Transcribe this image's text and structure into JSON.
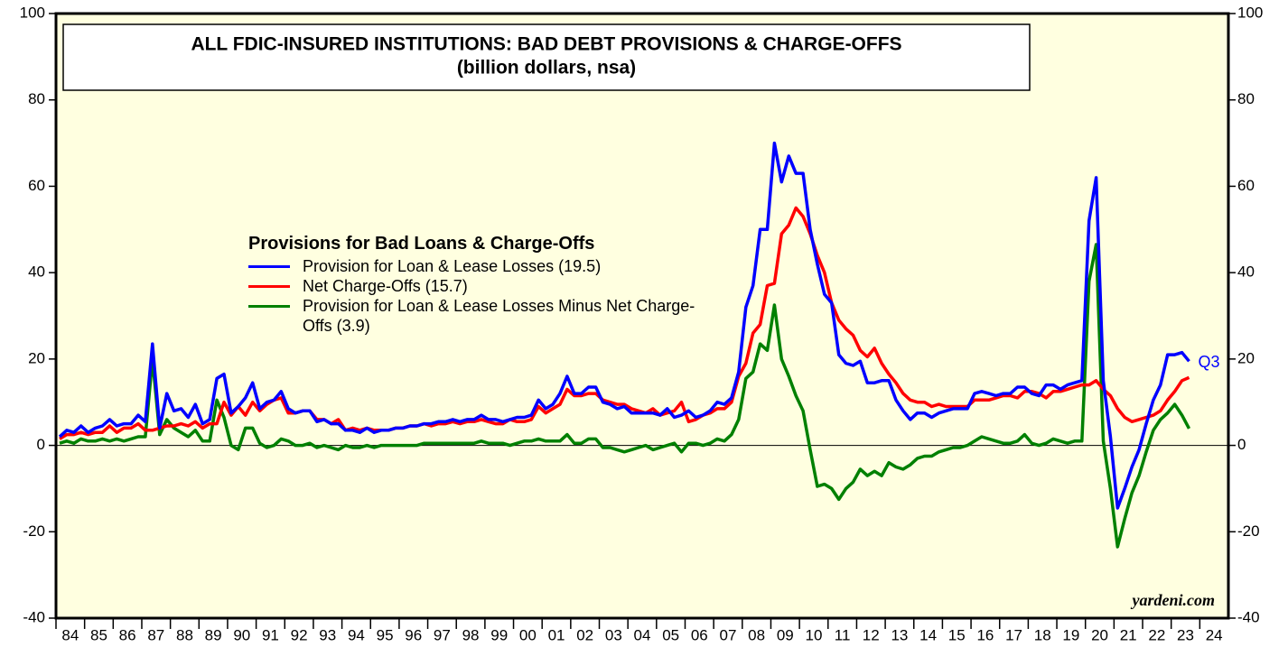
{
  "chart_data": {
    "type": "line",
    "title": "ALL FDIC-INSURED INSTITUTIONS: BAD DEBT PROVISIONS & CHARGE-OFFS",
    "subtitle": "(billion dollars, nsa)",
    "legend_title": "Provisions for Bad Loans & Charge-Offs",
    "annotations": [
      "Q3",
      "yardeni.com"
    ],
    "x": [
      1984.125,
      1984.375,
      1984.625,
      1984.875,
      1985.125,
      1985.375,
      1985.625,
      1985.875,
      1986.125,
      1986.375,
      1986.625,
      1986.875,
      1987.125,
      1987.375,
      1987.625,
      1987.875,
      1988.125,
      1988.375,
      1988.625,
      1988.875,
      1989.125,
      1989.375,
      1989.625,
      1989.875,
      1990.125,
      1990.375,
      1990.625,
      1990.875,
      1991.125,
      1991.375,
      1991.625,
      1991.875,
      1992.125,
      1992.375,
      1992.625,
      1992.875,
      1993.125,
      1993.375,
      1993.625,
      1993.875,
      1994.125,
      1994.375,
      1994.625,
      1994.875,
      1995.125,
      1995.375,
      1995.625,
      1995.875,
      1996.125,
      1996.375,
      1996.625,
      1996.875,
      1997.125,
      1997.375,
      1997.625,
      1997.875,
      1998.125,
      1998.375,
      1998.625,
      1998.875,
      1999.125,
      1999.375,
      1999.625,
      1999.875,
      2000.125,
      2000.375,
      2000.625,
      2000.875,
      2001.125,
      2001.375,
      2001.625,
      2001.875,
      2002.125,
      2002.375,
      2002.625,
      2002.875,
      2003.125,
      2003.375,
      2003.625,
      2003.875,
      2004.125,
      2004.375,
      2004.625,
      2004.875,
      2005.125,
      2005.375,
      2005.625,
      2005.875,
      2006.125,
      2006.375,
      2006.625,
      2006.875,
      2007.125,
      2007.375,
      2007.625,
      2007.875,
      2008.125,
      2008.375,
      2008.625,
      2008.875,
      2009.125,
      2009.375,
      2009.625,
      2009.875,
      2010.125,
      2010.375,
      2010.625,
      2010.875,
      2011.125,
      2011.375,
      2011.625,
      2011.875,
      2012.125,
      2012.375,
      2012.625,
      2012.875,
      2013.125,
      2013.375,
      2013.625,
      2013.875,
      2014.125,
      2014.375,
      2014.625,
      2014.875,
      2015.125,
      2015.375,
      2015.625,
      2015.875,
      2016.125,
      2016.375,
      2016.625,
      2016.875,
      2017.125,
      2017.375,
      2017.625,
      2017.875,
      2018.125,
      2018.375,
      2018.625,
      2018.875,
      2019.125,
      2019.375,
      2019.625,
      2019.875,
      2020.125,
      2020.375,
      2020.625,
      2020.875,
      2021.125,
      2021.375,
      2021.625,
      2021.875,
      2022.125,
      2022.375,
      2022.625,
      2022.875,
      2023.125,
      2023.375,
      2023.625
    ],
    "series": [
      {
        "name": "Provision for Loan & Lease Losses (19.5)",
        "color": "#0000ff",
        "values": [
          2,
          3.5,
          3,
          4.5,
          3,
          4,
          4.5,
          6,
          4.5,
          5,
          5,
          7,
          5.5,
          23.5,
          4,
          12,
          8,
          8.5,
          6.5,
          9.5,
          5,
          6,
          15.5,
          16.5,
          7.5,
          9,
          11,
          14.5,
          8.5,
          10,
          10.5,
          12.5,
          8.5,
          7.5,
          8,
          8,
          5.5,
          6,
          5,
          5,
          3.5,
          3.5,
          3,
          4,
          3,
          3.5,
          3.5,
          4,
          4,
          4.5,
          4.5,
          5,
          5,
          5.5,
          5.5,
          6,
          5.5,
          6,
          6,
          7,
          6,
          6,
          5.5,
          6,
          6.5,
          6.5,
          7,
          10.5,
          8.5,
          9.5,
          12,
          16,
          12,
          12,
          13.5,
          13.5,
          10,
          9.5,
          8.5,
          9,
          7.5,
          7.5,
          7.5,
          7.5,
          7,
          8.5,
          6.5,
          7,
          8,
          6.5,
          7,
          8,
          10,
          9.5,
          11,
          17,
          32,
          37,
          50,
          50,
          70,
          61,
          67,
          63,
          63,
          50,
          42,
          35,
          33,
          21,
          19,
          18.5,
          19.5,
          14.5,
          14.5,
          15,
          15,
          10.5,
          8,
          6,
          7.5,
          7.5,
          6.5,
          7.5,
          8,
          8.5,
          8.5,
          8.5,
          12,
          12.5,
          12,
          11.5,
          12,
          12,
          13.5,
          13.5,
          12,
          11.5,
          14,
          14,
          13,
          14,
          14.5,
          15,
          52,
          62,
          15,
          2,
          -14.5,
          -10,
          -5,
          -1,
          5,
          10.5,
          14,
          21,
          21,
          21.5,
          19.5
        ]
      },
      {
        "name": "Net Charge-Offs (15.7)",
        "color": "#ff0000",
        "values": [
          1.5,
          2.5,
          2.5,
          3,
          2.5,
          3,
          3,
          4.5,
          3,
          4,
          4,
          5,
          3.5,
          3.5,
          4,
          4.5,
          4.5,
          5,
          4.5,
          5.5,
          4,
          5,
          5,
          10,
          7,
          9,
          7,
          10,
          8,
          9.5,
          10.5,
          11,
          7.5,
          7.5,
          8,
          8,
          6,
          6,
          5,
          6,
          3.5,
          4,
          3.5,
          4,
          3.5,
          3.5,
          3.5,
          4,
          4,
          4.5,
          4.5,
          5,
          4.5,
          5,
          5,
          5.5,
          5,
          5.5,
          5.5,
          6,
          5.5,
          5,
          5,
          6,
          5.5,
          5.5,
          6,
          9,
          7.5,
          8.5,
          9.5,
          13,
          11.5,
          11.5,
          12,
          12,
          10.5,
          10,
          9.5,
          9.5,
          8.5,
          8,
          7.5,
          8.5,
          7,
          7.5,
          8,
          10,
          5.5,
          6,
          7,
          7.5,
          8.5,
          8.5,
          10,
          16,
          19,
          26,
          28,
          37,
          37.5,
          49,
          51,
          55,
          53,
          49,
          44,
          40,
          33,
          29,
          27,
          25.5,
          22,
          20.5,
          22.5,
          19,
          16.5,
          14.5,
          12,
          10.5,
          10,
          10,
          9,
          9.5,
          9,
          9,
          9,
          9,
          10.5,
          10.5,
          10.5,
          11,
          11.5,
          11.5,
          11,
          12.5,
          12.5,
          12,
          11,
          12.5,
          12.5,
          13,
          13.5,
          14,
          14,
          15,
          13,
          11.5,
          8.5,
          6.5,
          5.5,
          6,
          6.5,
          7,
          8,
          10.5,
          12.5,
          15,
          15.7
        ]
      },
      {
        "name": "Provision for Loan & Lease Losses Minus Net Charge-Offs (3.9)",
        "color": "#008000",
        "values": [
          0.5,
          1,
          0.5,
          1.5,
          1,
          1,
          1.5,
          1,
          1.5,
          1,
          1.5,
          2,
          2,
          20,
          2.5,
          6,
          4,
          3,
          2,
          3.5,
          1,
          1,
          10.5,
          6.5,
          0,
          -1,
          4,
          4,
          0.5,
          -0.5,
          0,
          1.5,
          1,
          0,
          0,
          0.5,
          -0.5,
          0,
          -0.5,
          -1,
          0,
          -0.5,
          -0.5,
          0,
          -0.5,
          0,
          0,
          0,
          0,
          0,
          0,
          0.5,
          0.5,
          0.5,
          0.5,
          0.5,
          0.5,
          0.5,
          0.5,
          1,
          0.5,
          0.5,
          0.5,
          0,
          0.5,
          1,
          1,
          1.5,
          1,
          1,
          1,
          2.5,
          0.5,
          0.5,
          1.5,
          1.5,
          -0.5,
          -0.5,
          -1,
          -1.5,
          -1,
          -0.5,
          0,
          -1,
          -0.5,
          0,
          0.5,
          -1.5,
          0.5,
          0.5,
          0,
          0.5,
          1.5,
          1,
          2.5,
          6,
          15.5,
          17,
          23.5,
          22,
          32.5,
          20,
          16,
          11.5,
          8,
          -1,
          -9.5,
          -9,
          -10,
          -12.5,
          -10,
          -8.5,
          -5.5,
          -7,
          -6,
          -7,
          -4,
          -5,
          -5.5,
          -4.5,
          -3,
          -2.5,
          -2.5,
          -1.5,
          -1,
          -0.5,
          -0.5,
          0,
          1,
          2,
          1.5,
          1,
          0.5,
          0.5,
          1,
          2.5,
          0.5,
          0,
          0.5,
          1.5,
          1,
          0.5,
          1,
          1,
          38,
          46.5,
          1,
          -10,
          -23.5,
          -17,
          -11,
          -7,
          -1.5,
          3.5,
          6,
          7.5,
          9.5,
          7,
          3.9
        ]
      }
    ],
    "xlim": [
      1984,
      2025
    ],
    "xticks": [
      {
        "value": 1984,
        "label": "84"
      },
      {
        "value": 1985,
        "label": "85"
      },
      {
        "value": 1986,
        "label": "86"
      },
      {
        "value": 1987,
        "label": "87"
      },
      {
        "value": 1988,
        "label": "88"
      },
      {
        "value": 1989,
        "label": "89"
      },
      {
        "value": 1990,
        "label": "90"
      },
      {
        "value": 1991,
        "label": "91"
      },
      {
        "value": 1992,
        "label": "92"
      },
      {
        "value": 1993,
        "label": "93"
      },
      {
        "value": 1994,
        "label": "94"
      },
      {
        "value": 1995,
        "label": "95"
      },
      {
        "value": 1996,
        "label": "96"
      },
      {
        "value": 1997,
        "label": "97"
      },
      {
        "value": 1998,
        "label": "98"
      },
      {
        "value": 1999,
        "label": "99"
      },
      {
        "value": 2000,
        "label": "00"
      },
      {
        "value": 2001,
        "label": "01"
      },
      {
        "value": 2002,
        "label": "02"
      },
      {
        "value": 2003,
        "label": "03"
      },
      {
        "value": 2004,
        "label": "04"
      },
      {
        "value": 2005,
        "label": "05"
      },
      {
        "value": 2006,
        "label": "06"
      },
      {
        "value": 2007,
        "label": "07"
      },
      {
        "value": 2008,
        "label": "08"
      },
      {
        "value": 2009,
        "label": "09"
      },
      {
        "value": 2010,
        "label": "10"
      },
      {
        "value": 2011,
        "label": "11"
      },
      {
        "value": 2012,
        "label": "12"
      },
      {
        "value": 2013,
        "label": "13"
      },
      {
        "value": 2014,
        "label": "14"
      },
      {
        "value": 2015,
        "label": "15"
      },
      {
        "value": 2016,
        "label": "16"
      },
      {
        "value": 2017,
        "label": "17"
      },
      {
        "value": 2018,
        "label": "18"
      },
      {
        "value": 2019,
        "label": "19"
      },
      {
        "value": 2020,
        "label": "20"
      },
      {
        "value": 2021,
        "label": "21"
      },
      {
        "value": 2022,
        "label": "22"
      },
      {
        "value": 2023,
        "label": "23"
      },
      {
        "value": 2024,
        "label": "24"
      }
    ],
    "ylim": [
      -40,
      100
    ],
    "yticks": [
      -40,
      -20,
      0,
      20,
      40,
      60,
      80,
      100
    ],
    "y2lim": [
      -40,
      100
    ],
    "y2ticks": [
      -40,
      -20,
      0,
      20,
      40,
      60,
      80,
      100
    ],
    "background": "#ffffe0"
  }
}
